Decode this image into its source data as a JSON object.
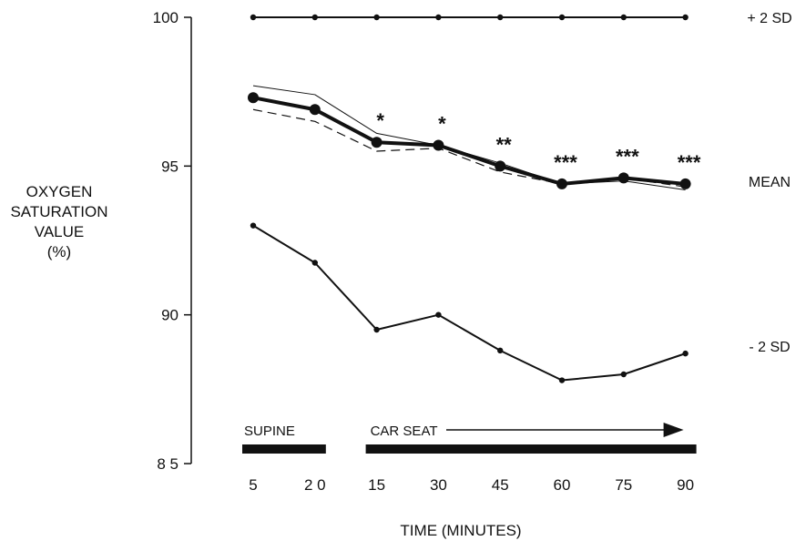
{
  "chart_data": {
    "type": "line",
    "x": [
      "5",
      "2 0",
      "15",
      "30",
      "45",
      "60",
      "75",
      "90"
    ],
    "y_ticks": [
      "100",
      "95",
      "90",
      "8 5"
    ],
    "ylim": [
      85,
      100
    ],
    "ylabel": [
      "OXYGEN",
      "SATURATION",
      "VALUE",
      "(%)"
    ],
    "xlabel": "TIME (MINUTES)",
    "series": [
      {
        "name": "+ 2 SD",
        "style": "line-small-markers",
        "values": [
          100,
          100,
          100,
          100,
          100,
          100,
          100,
          100
        ]
      },
      {
        "name": "MEAN",
        "style": "bold-line-large-markers",
        "values": [
          97.3,
          96.9,
          95.8,
          95.7,
          95.0,
          94.4,
          94.6,
          94.4
        ]
      },
      {
        "style": "thin-line",
        "values": [
          97.7,
          97.4,
          96.1,
          95.7,
          95.1,
          94.4,
          94.5,
          94.2
        ]
      },
      {
        "style": "dashed-line",
        "values": [
          96.9,
          96.5,
          95.5,
          95.6,
          94.8,
          94.4,
          94.6,
          94.3
        ]
      },
      {
        "name": "- 2 SD",
        "style": "line-small-markers",
        "values": [
          93.0,
          91.75,
          89.5,
          90.0,
          88.8,
          87.8,
          88.0,
          88.7
        ]
      }
    ],
    "annotations": [
      {
        "x_index": 2,
        "text": "*"
      },
      {
        "x_index": 3,
        "text": "*"
      },
      {
        "x_index": 4,
        "text": "**"
      },
      {
        "x_index": 5,
        "text": "***"
      },
      {
        "x_index": 6,
        "text": "***"
      },
      {
        "x_index": 7,
        "text": "***"
      }
    ],
    "phases": [
      {
        "label": "SUPINE",
        "from_index": 0,
        "to_index": 1
      },
      {
        "label": "CAR SEAT",
        "from_index": 2,
        "to_index": 7,
        "arrow": true
      }
    ],
    "colors": {
      "ink": "#111111"
    }
  }
}
